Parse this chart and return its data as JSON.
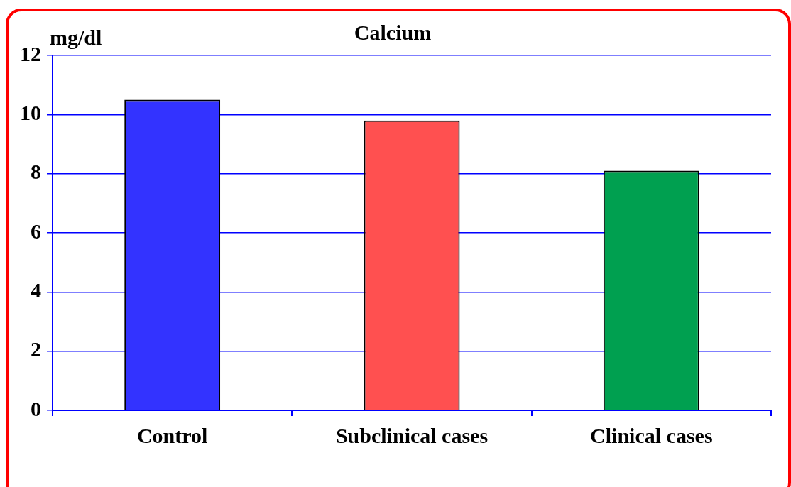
{
  "chart_data": {
    "type": "bar",
    "title": "Calcium",
    "ylabel": "mg/dl",
    "categories": [
      "Control",
      "Subclinical cases",
      "Clinical cases"
    ],
    "values": [
      10.5,
      9.8,
      8.1
    ],
    "colors": [
      "#3333ff",
      "#ff5050",
      "#00a050"
    ],
    "ylim": [
      0,
      12
    ],
    "yticks": [
      0,
      2,
      4,
      6,
      8,
      10,
      12
    ],
    "grid": "y"
  }
}
